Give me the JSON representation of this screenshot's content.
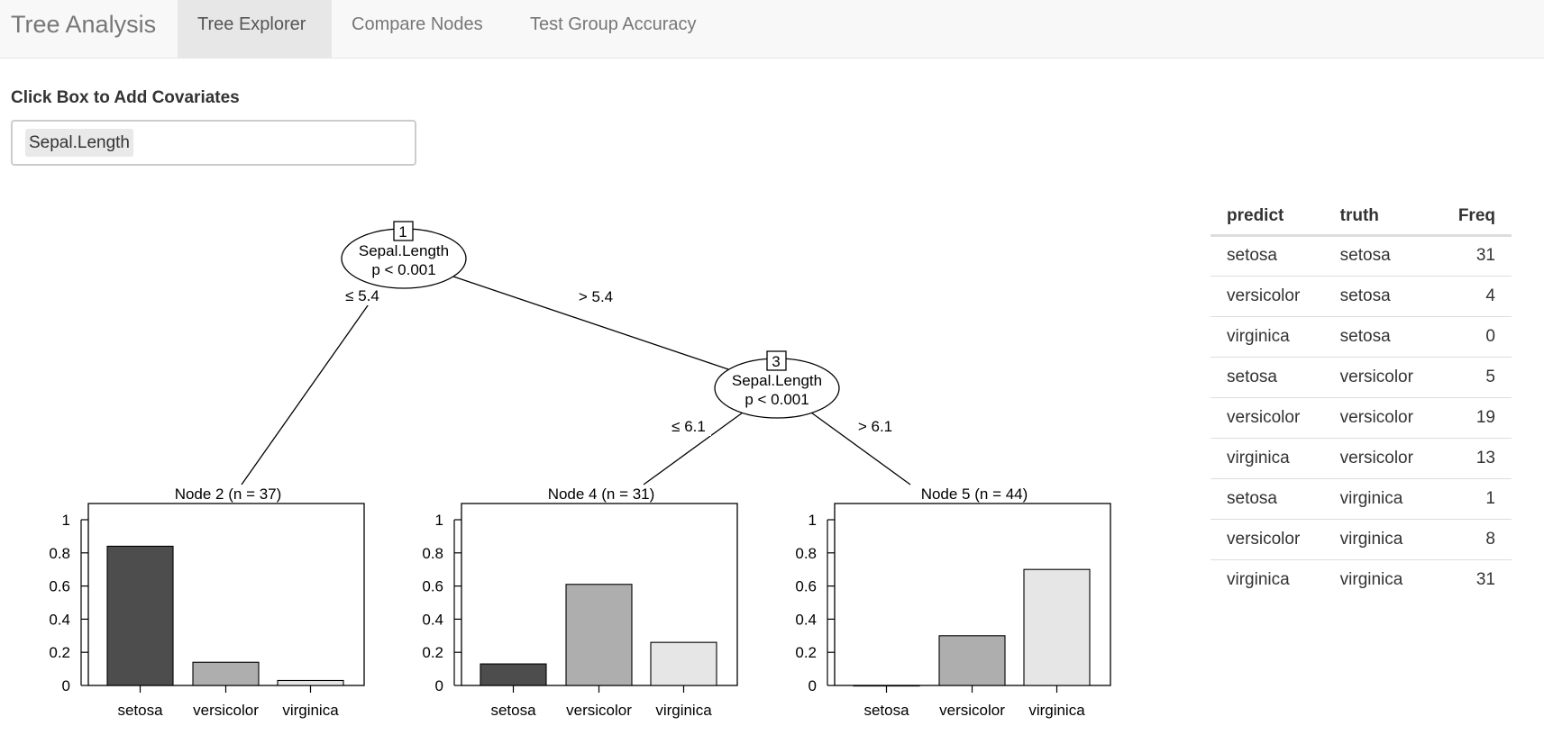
{
  "navbar": {
    "brand": "Tree Analysis",
    "tabs": [
      {
        "label": "Tree Explorer",
        "active": true
      },
      {
        "label": "Compare Nodes",
        "active": false
      },
      {
        "label": "Test Group Accuracy",
        "active": false
      }
    ]
  },
  "covariates": {
    "label": "Click Box to Add Covariates",
    "selected": [
      "Sepal.Length"
    ]
  },
  "tree": {
    "inner_nodes": [
      {
        "id": "1",
        "variable": "Sepal.Length",
        "pvalue": "p < 0.001"
      },
      {
        "id": "3",
        "variable": "Sepal.Length",
        "pvalue": "p < 0.001"
      }
    ],
    "edge_labels": [
      "≤ 5.4",
      "> 5.4",
      "≤ 6.1",
      "> 6.1"
    ],
    "bar_colors": [
      "#4d4d4d",
      "#aeaeae",
      "#e6e6e6"
    ]
  },
  "chart_data": [
    {
      "type": "bar",
      "title": "Node 2 (n = 37)",
      "categories": [
        "setosa",
        "versicolor",
        "virginica"
      ],
      "values": [
        0.84,
        0.14,
        0.03
      ],
      "ylim": [
        0,
        1
      ],
      "yticks": [
        "0",
        "0.2",
        "0.4",
        "0.6",
        "0.8",
        "1"
      ]
    },
    {
      "type": "bar",
      "title": "Node 4 (n = 31)",
      "categories": [
        "setosa",
        "versicolor",
        "virginica"
      ],
      "values": [
        0.13,
        0.61,
        0.26
      ],
      "ylim": [
        0,
        1
      ],
      "yticks": [
        "0",
        "0.2",
        "0.4",
        "0.6",
        "0.8",
        "1"
      ]
    },
    {
      "type": "bar",
      "title": "Node 5 (n = 44)",
      "categories": [
        "setosa",
        "versicolor",
        "virginica"
      ],
      "values": [
        0.0,
        0.3,
        0.7
      ],
      "ylim": [
        0,
        1
      ],
      "yticks": [
        "0",
        "0.2",
        "0.4",
        "0.6",
        "0.8",
        "1"
      ]
    }
  ],
  "table": {
    "headers": [
      "predict",
      "truth",
      "Freq"
    ],
    "rows": [
      [
        "setosa",
        "setosa",
        "31"
      ],
      [
        "versicolor",
        "setosa",
        "4"
      ],
      [
        "virginica",
        "setosa",
        "0"
      ],
      [
        "setosa",
        "versicolor",
        "5"
      ],
      [
        "versicolor",
        "versicolor",
        "19"
      ],
      [
        "virginica",
        "versicolor",
        "13"
      ],
      [
        "setosa",
        "virginica",
        "1"
      ],
      [
        "versicolor",
        "virginica",
        "8"
      ],
      [
        "virginica",
        "virginica",
        "31"
      ]
    ]
  }
}
